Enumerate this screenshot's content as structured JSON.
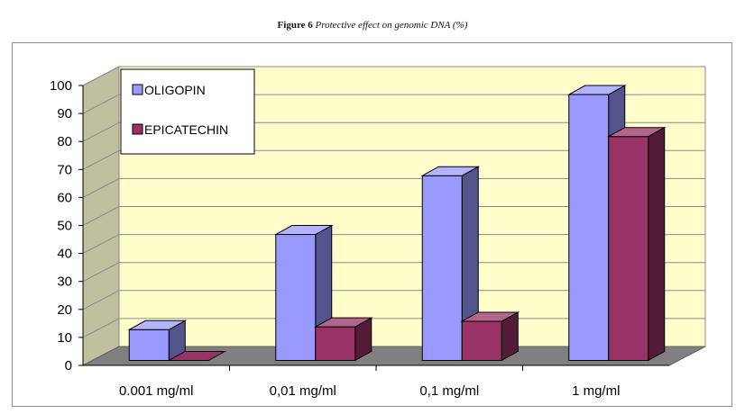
{
  "figure": {
    "label": "Figure 6",
    "caption": "Protective effect on genomic DNA (%)"
  },
  "chart_data": {
    "type": "bar",
    "categories": [
      "0.001 mg/ml",
      "0,01 mg/ml",
      "0,1 mg/ml",
      "1 mg/ml"
    ],
    "series": [
      {
        "name": "OLIGOPIN",
        "values": [
          11,
          45,
          66,
          95
        ]
      },
      {
        "name": "EPICATECHIN",
        "values": [
          0,
          12,
          14,
          80
        ]
      }
    ],
    "ylim": [
      0,
      100
    ],
    "yticks": [
      0,
      10,
      20,
      30,
      40,
      50,
      60,
      70,
      80,
      90,
      100
    ],
    "grid": true,
    "three_d": true,
    "legend_position": "top-left",
    "colors": {
      "OLIGOPIN": "#9999ff",
      "EPICATECHIN": "#993366",
      "plot_wall": "#ffffcc",
      "side_wall": "#c0c0a0",
      "floor": "#808080"
    }
  }
}
